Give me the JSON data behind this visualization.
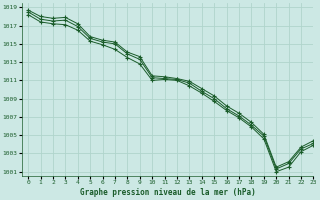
{
  "title": "Graphe pression niveau de la mer (hPa)",
  "background_color": "#cce8e4",
  "grid_color": "#b0d4cc",
  "line_color": "#1a5c2a",
  "marker_color": "#1a5c2a",
  "xlim": [
    -0.5,
    23
  ],
  "ylim": [
    1000.5,
    1019.5
  ],
  "yticks": [
    1001,
    1003,
    1005,
    1007,
    1009,
    1011,
    1013,
    1015,
    1017,
    1019
  ],
  "xticks": [
    0,
    1,
    2,
    3,
    4,
    5,
    6,
    7,
    8,
    9,
    10,
    11,
    12,
    13,
    14,
    15,
    16,
    17,
    18,
    19,
    20,
    21,
    22,
    23
  ],
  "series1": [
    1018.2,
    1017.4,
    1017.2,
    1017.1,
    1016.5,
    1015.3,
    1014.9,
    1014.4,
    1013.5,
    1012.8,
    1011.0,
    1011.1,
    1011.0,
    1010.4,
    1009.6,
    1008.7,
    1007.7,
    1006.9,
    1005.9,
    1004.6,
    1001.0,
    1001.5,
    1003.2,
    1003.9
  ],
  "series2": [
    1018.5,
    1017.7,
    1017.5,
    1017.6,
    1016.9,
    1015.6,
    1015.2,
    1015.0,
    1013.9,
    1013.3,
    1011.3,
    1011.2,
    1011.1,
    1010.7,
    1009.8,
    1009.0,
    1007.9,
    1007.1,
    1006.1,
    1004.9,
    1001.3,
    1001.9,
    1003.5,
    1004.1
  ],
  "series3": [
    1018.7,
    1018.0,
    1017.8,
    1017.9,
    1017.2,
    1015.8,
    1015.4,
    1015.2,
    1014.1,
    1013.6,
    1011.5,
    1011.4,
    1011.2,
    1010.9,
    1010.1,
    1009.3,
    1008.2,
    1007.4,
    1006.4,
    1005.1,
    1001.5,
    1002.1,
    1003.7,
    1004.4
  ]
}
